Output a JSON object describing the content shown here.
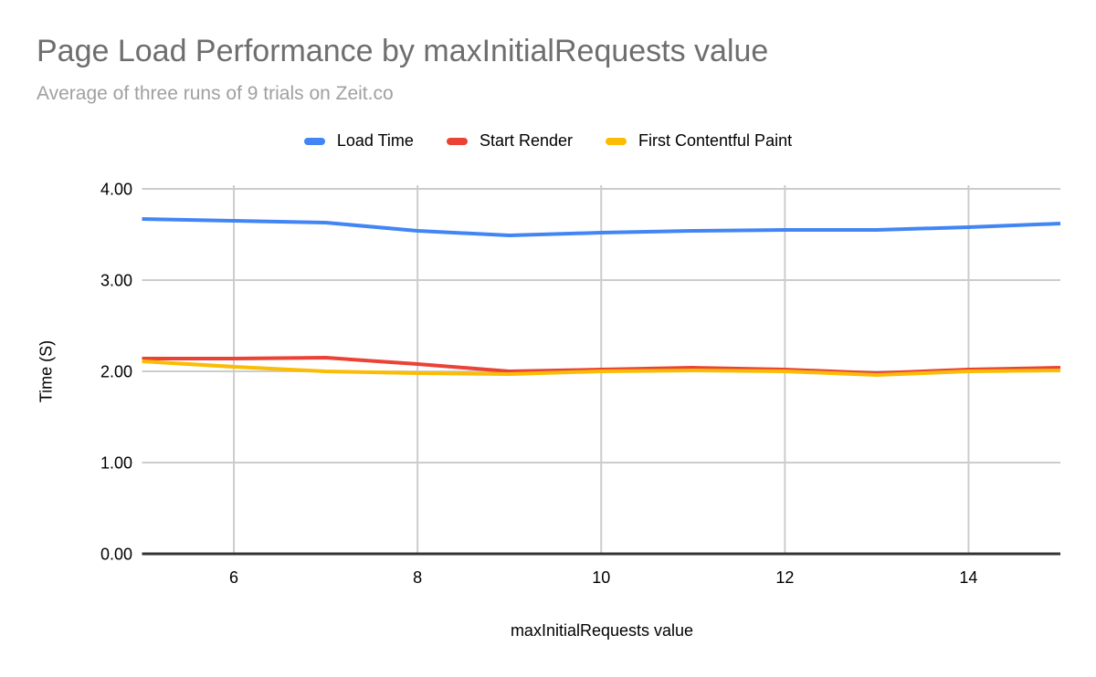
{
  "chart_data": {
    "type": "line",
    "title": "Page Load Performance by maxInitialRequests value",
    "subtitle": "Average of three runs of 9 trials on Zeit.co",
    "xlabel": "maxInitialRequests value",
    "ylabel": "Time (S)",
    "x": [
      5,
      6,
      7,
      8,
      9,
      10,
      11,
      12,
      13,
      14,
      15
    ],
    "xlim": [
      5,
      15
    ],
    "ylim": [
      0,
      4
    ],
    "x_ticks": {
      "values": [
        6,
        8,
        10,
        12,
        14
      ],
      "labels": [
        "6",
        "8",
        "10",
        "12",
        "14"
      ]
    },
    "y_ticks": {
      "values": [
        0,
        1,
        2,
        3,
        4
      ],
      "labels": [
        "0.00",
        "1.00",
        "2.00",
        "3.00",
        "4.00"
      ]
    },
    "grid": true,
    "legend_position": "top",
    "series": [
      {
        "name": "Load Time",
        "color": "#4285f4",
        "values": [
          3.67,
          3.65,
          3.63,
          3.54,
          3.49,
          3.52,
          3.54,
          3.55,
          3.55,
          3.58,
          3.62
        ]
      },
      {
        "name": "Start Render",
        "color": "#ea4335",
        "values": [
          2.14,
          2.14,
          2.15,
          2.08,
          2.0,
          2.02,
          2.04,
          2.02,
          1.98,
          2.02,
          2.04
        ]
      },
      {
        "name": "First Contentful Paint",
        "color": "#fbbc04",
        "values": [
          2.11,
          2.05,
          2.0,
          1.98,
          1.97,
          2.0,
          2.01,
          2.0,
          1.96,
          2.0,
          2.01
        ]
      }
    ]
  },
  "colors": {
    "background": "#ffffff",
    "title_text": "#6e6e6e",
    "subtitle_text": "#a0a0a0",
    "grid_line": "#cccccc",
    "axis_baseline": "#333333",
    "tick_text": "#000000"
  }
}
